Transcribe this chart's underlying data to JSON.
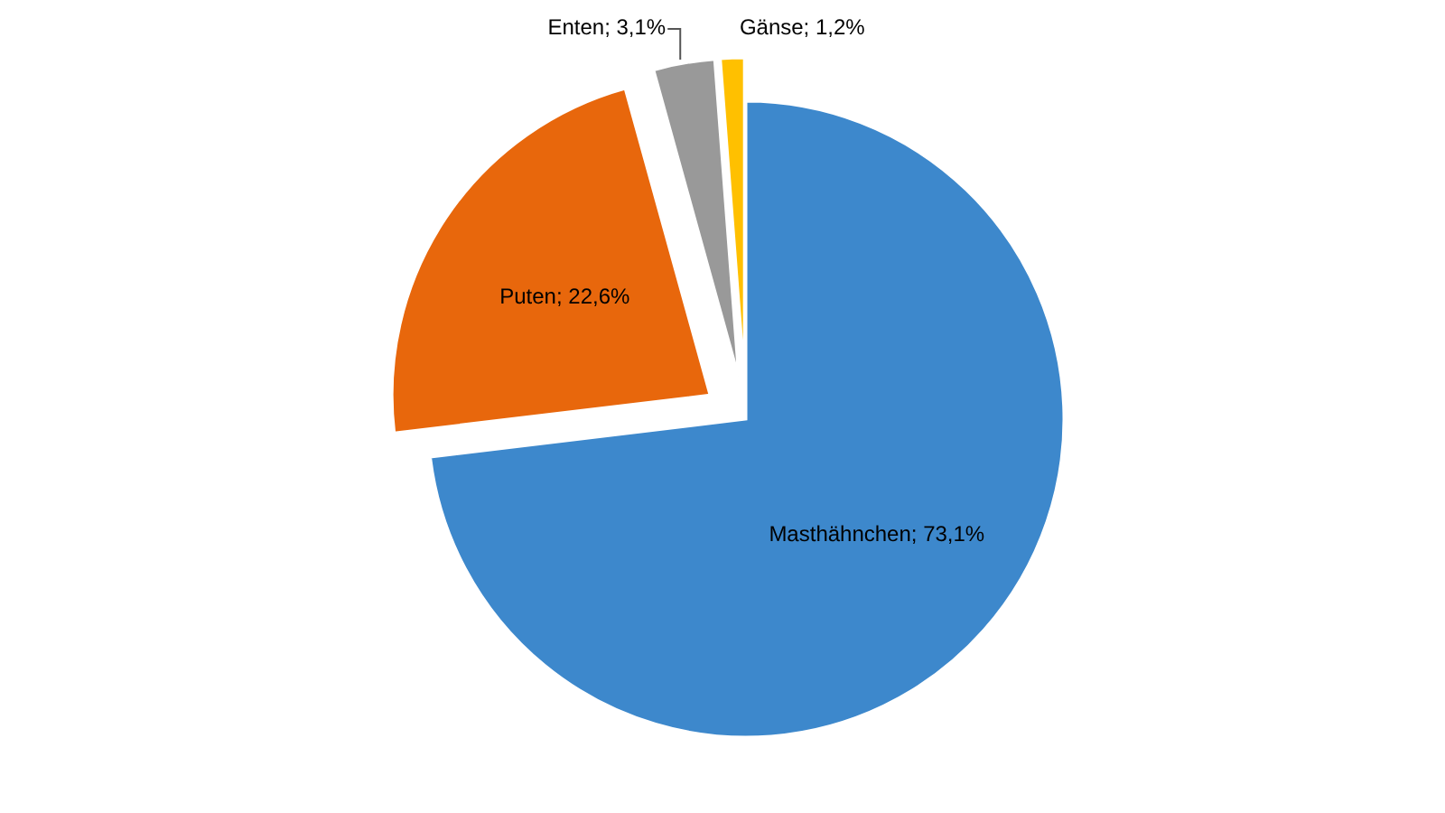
{
  "chart_data": {
    "type": "pie",
    "categories": [
      "Masthähnchen",
      "Puten",
      "Enten",
      "Gänse"
    ],
    "values": [
      73.1,
      22.6,
      3.1,
      1.2
    ],
    "colors": [
      "#3d88cc",
      "#e8670c",
      "#999999",
      "#ffc000"
    ],
    "value_labels": [
      "73,1%",
      "22,6%",
      "3,1%",
      "1,2%"
    ]
  }
}
